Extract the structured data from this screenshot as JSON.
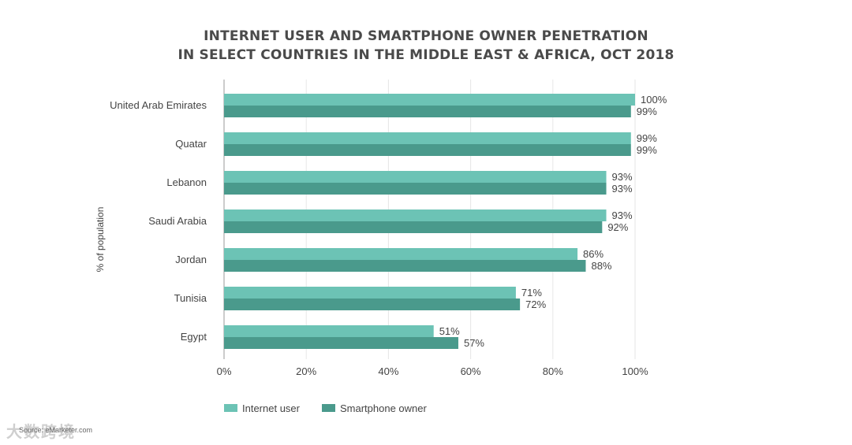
{
  "chart_data": {
    "type": "bar",
    "orientation": "horizontal",
    "title_lines": [
      "INTERNET USER AND SMARTPHONE OWNER PENETRATION",
      "IN SELECT COUNTRIES IN THE MIDDLE EAST & AFRICA, OCT 2018"
    ],
    "ylabel": "% of population",
    "xlim": [
      0,
      100
    ],
    "xticks": [
      "0%",
      "20%",
      "40%",
      "60%",
      "80%",
      "100%"
    ],
    "categories": [
      "United Arab Emirates",
      "Quatar",
      "Lebanon",
      "Saudi Arabia",
      "Jordan",
      "Tunisia",
      "Egypt"
    ],
    "series": [
      {
        "name": "Internet user",
        "color": "#6cc3b5",
        "values": [
          100,
          99,
          93,
          93,
          86,
          71,
          51
        ],
        "labels": [
          "100%",
          "99%",
          "93%",
          "93%",
          "86%",
          "71%",
          "51%"
        ]
      },
      {
        "name": "Smartphone owner",
        "color": "#4a9a8c",
        "values": [
          99,
          99,
          93,
          92,
          88,
          72,
          57
        ],
        "labels": [
          "99%",
          "99%",
          "93%",
          "92%",
          "88%",
          "72%",
          "57%"
        ]
      }
    ],
    "grid": true,
    "legend_position": "bottom"
  },
  "footer": {
    "source": "Source: eMarketer.com",
    "watermark": "大数跨境"
  }
}
